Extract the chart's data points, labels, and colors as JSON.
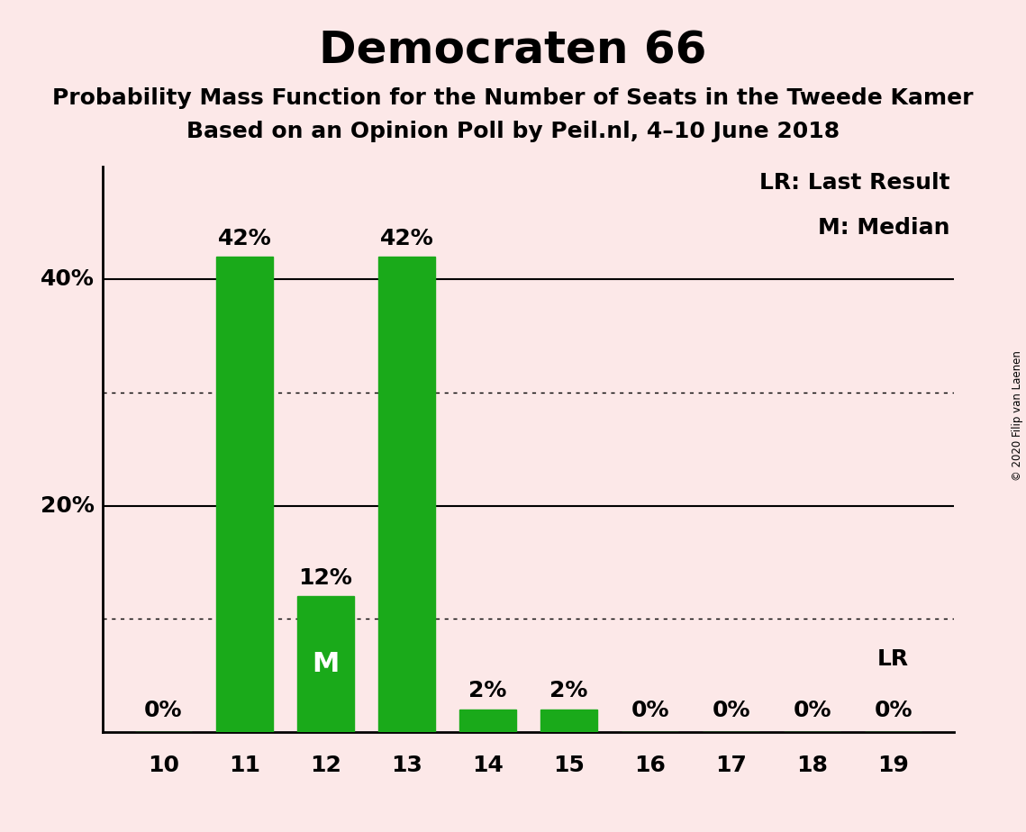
{
  "title": "Democraten 66",
  "subtitle1": "Probability Mass Function for the Number of Seats in the Tweede Kamer",
  "subtitle2": "Based on an Opinion Poll by Peil.nl, 4–10 June 2018",
  "categories": [
    10,
    11,
    12,
    13,
    14,
    15,
    16,
    17,
    18,
    19
  ],
  "values": [
    0,
    42,
    12,
    42,
    2,
    2,
    0,
    0,
    0,
    0
  ],
  "bar_color": "#1aaa1a",
  "background_color": "#fce8e8",
  "title_fontsize": 36,
  "subtitle_fontsize": 18,
  "ylim": [
    0,
    50
  ],
  "solid_yticks": [
    20,
    40
  ],
  "dotted_yticks": [
    10,
    30
  ],
  "median_seat": 12,
  "last_result_seat": 19,
  "legend_text1": "LR: Last Result",
  "legend_text2": "M: Median",
  "copyright_text": "© 2020 Filip van Laenen",
  "bar_label_fontsize": 18,
  "axis_tick_fontsize": 18,
  "bar_width": 0.7,
  "ylim_display": [
    0,
    46
  ]
}
